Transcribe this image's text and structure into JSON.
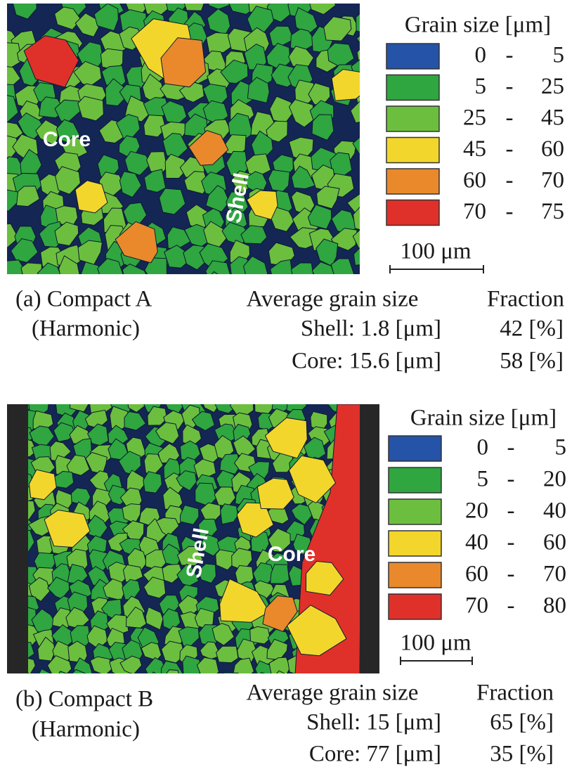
{
  "panels": [
    {
      "image_labels": {
        "core": "Core",
        "shell": "Shell"
      },
      "legend": {
        "title": "Grain size [μm]",
        "items": [
          {
            "from": "0",
            "dash": "-",
            "to": "5",
            "color": "#2453a8"
          },
          {
            "from": "5",
            "dash": "-",
            "to": "25",
            "color": "#2fa640"
          },
          {
            "from": "25",
            "dash": "-",
            "to": "45",
            "color": "#6cbf3e"
          },
          {
            "from": "45",
            "dash": "-",
            "to": "60",
            "color": "#f3d62c"
          },
          {
            "from": "60",
            "dash": "-",
            "to": "70",
            "color": "#e9892c"
          },
          {
            "from": "70",
            "dash": "-",
            "to": "75",
            "color": "#e0302a"
          }
        ]
      },
      "scale_bar": "100 μm",
      "caption": {
        "label": "(a) Compact A",
        "sublabel": "(Harmonic)"
      },
      "stats": {
        "heading": "Average grain size",
        "shell": "Shell: 1.8 [μm]",
        "core": "Core:  15.6 [μm]",
        "fraction_heading": "Fraction",
        "shell_fraction": "42 [%]",
        "core_fraction": "58 [%]"
      }
    },
    {
      "image_labels": {
        "core": "Core",
        "shell": "Shell"
      },
      "legend": {
        "title": "Grain size [μm]",
        "items": [
          {
            "from": "0",
            "dash": "-",
            "to": "5",
            "color": "#2453a8"
          },
          {
            "from": "5",
            "dash": "-",
            "to": "20",
            "color": "#2fa640"
          },
          {
            "from": "20",
            "dash": "-",
            "to": "40",
            "color": "#6cbf3e"
          },
          {
            "from": "40",
            "dash": "-",
            "to": "60",
            "color": "#f3d62c"
          },
          {
            "from": "60",
            "dash": "-",
            "to": "70",
            "color": "#e9892c"
          },
          {
            "from": "70",
            "dash": "-",
            "to": "80",
            "color": "#e0302a"
          }
        ]
      },
      "scale_bar": "100 μm",
      "caption": {
        "label": "(b) Compact B",
        "sublabel": "(Harmonic)"
      },
      "stats": {
        "heading": "Average grain size",
        "shell": "Shell: 15 [μm]",
        "core": "Core:  77 [μm]",
        "fraction_heading": "Fraction",
        "shell_fraction": "65 [%]",
        "core_fraction": "35 [%]"
      }
    }
  ]
}
